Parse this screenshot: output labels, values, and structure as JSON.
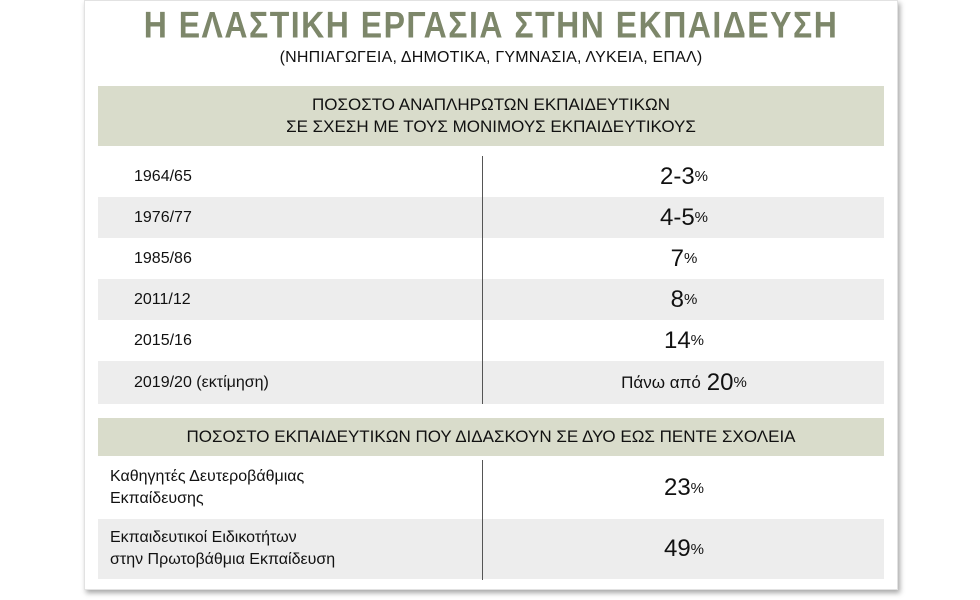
{
  "header": {
    "title": "Η ΕΛΑΣΤΙΚΗ ΕΡΓΑΣΙΑ ΣΤΗΝ ΕΚΠΑΙΔΕΥΣΗ",
    "subtitle": "(ΝΗΠΙΑΓΩΓΕΙΑ, ΔΗΜΟΤΙΚΑ, ΓΥΜΝΑΣΙΑ, ΛΥΚΕΙΑ, ΕΠΑΛ)"
  },
  "section1": {
    "heading_line1": "ΠΟΣΟΣΤΟ ΑΝΑΠΛΗΡΩΤΩΝ ΕΚΠΑΙΔΕΥΤΙΚΩΝ",
    "heading_line2": "ΣΕ ΣΧΕΣΗ ΜΕ ΤΟΥΣ ΜΟΝΙΜΟΥΣ ΕΚΠΑΙΔΕΥΤΙΚΟΥΣ",
    "rows": [
      {
        "year": "1964/65",
        "value": "2-3",
        "unit": "%"
      },
      {
        "year": "1976/77",
        "value": "4-5",
        "unit": "%"
      },
      {
        "year": "1985/86",
        "value": "7",
        "unit": "%"
      },
      {
        "year": "2011/12",
        "value": "8",
        "unit": "%"
      },
      {
        "year": "2015/16",
        "value": "14",
        "unit": "%"
      },
      {
        "year": "2019/20 (εκτίμηση)",
        "prefix": "Πάνω από",
        "value": "20",
        "unit": "%"
      }
    ]
  },
  "section2": {
    "heading": "ΠΟΣΟΣΤΟ ΕΚΠΑΙΔΕΥΤΙΚΩΝ ΠΟΥ ΔΙΔΑΣΚΟΥΝ ΣΕ ΔΥΟ ΕΩΣ ΠΕΝΤΕ ΣΧΟΛΕΙΑ",
    "rows": [
      {
        "line1": "Καθηγητές Δευτεροβάθμιας",
        "line2": "Εκπαίδευσης",
        "value": "23",
        "unit": "%"
      },
      {
        "line1": "Εκπαιδευτικοί Ειδικοτήτων",
        "line2": "στην Πρωτοβάθμια Εκπαίδευση",
        "value": "49",
        "unit": "%"
      }
    ]
  }
}
